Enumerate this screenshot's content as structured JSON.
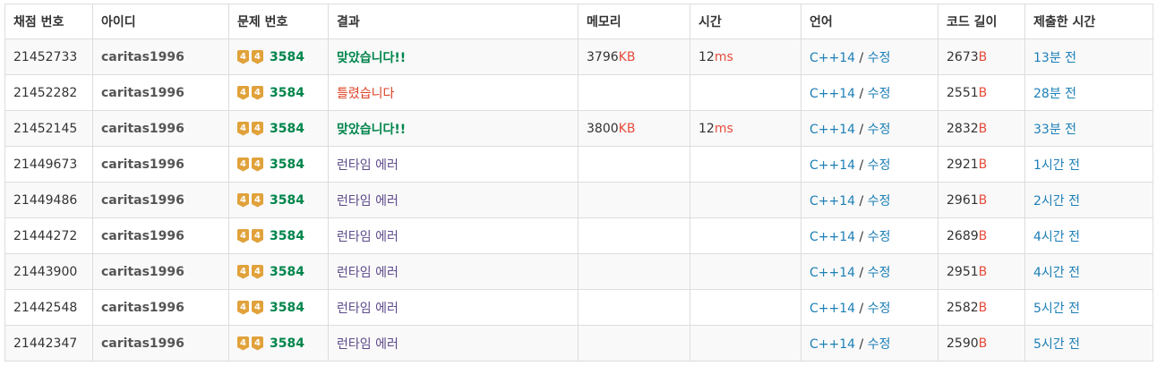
{
  "headers": [
    "채점 번호",
    "아이디",
    "문제 번호",
    "결과",
    "메모리",
    "시간",
    "언어",
    "코드 길이",
    "제출한 시간"
  ],
  "units": {
    "memory": "KB",
    "time": "ms",
    "code": "B"
  },
  "separator": " / ",
  "edit_label": "수정",
  "tier_label": "4",
  "colors": {
    "accepted": "#00854b",
    "wrong": "#dd4124",
    "runtime_error": "#5f4b8b",
    "unit": "#e74c3c",
    "link": "#1c7fb6",
    "tier_badge": "#e1a23b"
  },
  "icons": {
    "tier": "gold-tier-badge-icon"
  },
  "rows": [
    {
      "id": "21452733",
      "user": "caritas1996",
      "problem": "3584",
      "result": "맞았습니다!!",
      "result_type": "ac",
      "memory": "3796",
      "time": "12",
      "lang": "C++14",
      "code": "2673",
      "ago": "13분 전"
    },
    {
      "id": "21452282",
      "user": "caritas1996",
      "problem": "3584",
      "result": "틀렸습니다",
      "result_type": "wa",
      "memory": "",
      "time": "",
      "lang": "C++14",
      "code": "2551",
      "ago": "28분 전"
    },
    {
      "id": "21452145",
      "user": "caritas1996",
      "problem": "3584",
      "result": "맞았습니다!!",
      "result_type": "ac",
      "memory": "3800",
      "time": "12",
      "lang": "C++14",
      "code": "2832",
      "ago": "33분 전"
    },
    {
      "id": "21449673",
      "user": "caritas1996",
      "problem": "3584",
      "result": "런타임 에러",
      "result_type": "rte",
      "memory": "",
      "time": "",
      "lang": "C++14",
      "code": "2921",
      "ago": "1시간 전"
    },
    {
      "id": "21449486",
      "user": "caritas1996",
      "problem": "3584",
      "result": "런타임 에러",
      "result_type": "rte",
      "memory": "",
      "time": "",
      "lang": "C++14",
      "code": "2961",
      "ago": "2시간 전"
    },
    {
      "id": "21444272",
      "user": "caritas1996",
      "problem": "3584",
      "result": "런타임 에러",
      "result_type": "rte",
      "memory": "",
      "time": "",
      "lang": "C++14",
      "code": "2689",
      "ago": "4시간 전"
    },
    {
      "id": "21443900",
      "user": "caritas1996",
      "problem": "3584",
      "result": "런타임 에러",
      "result_type": "rte",
      "memory": "",
      "time": "",
      "lang": "C++14",
      "code": "2951",
      "ago": "4시간 전"
    },
    {
      "id": "21442548",
      "user": "caritas1996",
      "problem": "3584",
      "result": "런타임 에러",
      "result_type": "rte",
      "memory": "",
      "time": "",
      "lang": "C++14",
      "code": "2582",
      "ago": "5시간 전"
    },
    {
      "id": "21442347",
      "user": "caritas1996",
      "problem": "3584",
      "result": "런타임 에러",
      "result_type": "rte",
      "memory": "",
      "time": "",
      "lang": "C++14",
      "code": "2590",
      "ago": "5시간 전"
    }
  ]
}
